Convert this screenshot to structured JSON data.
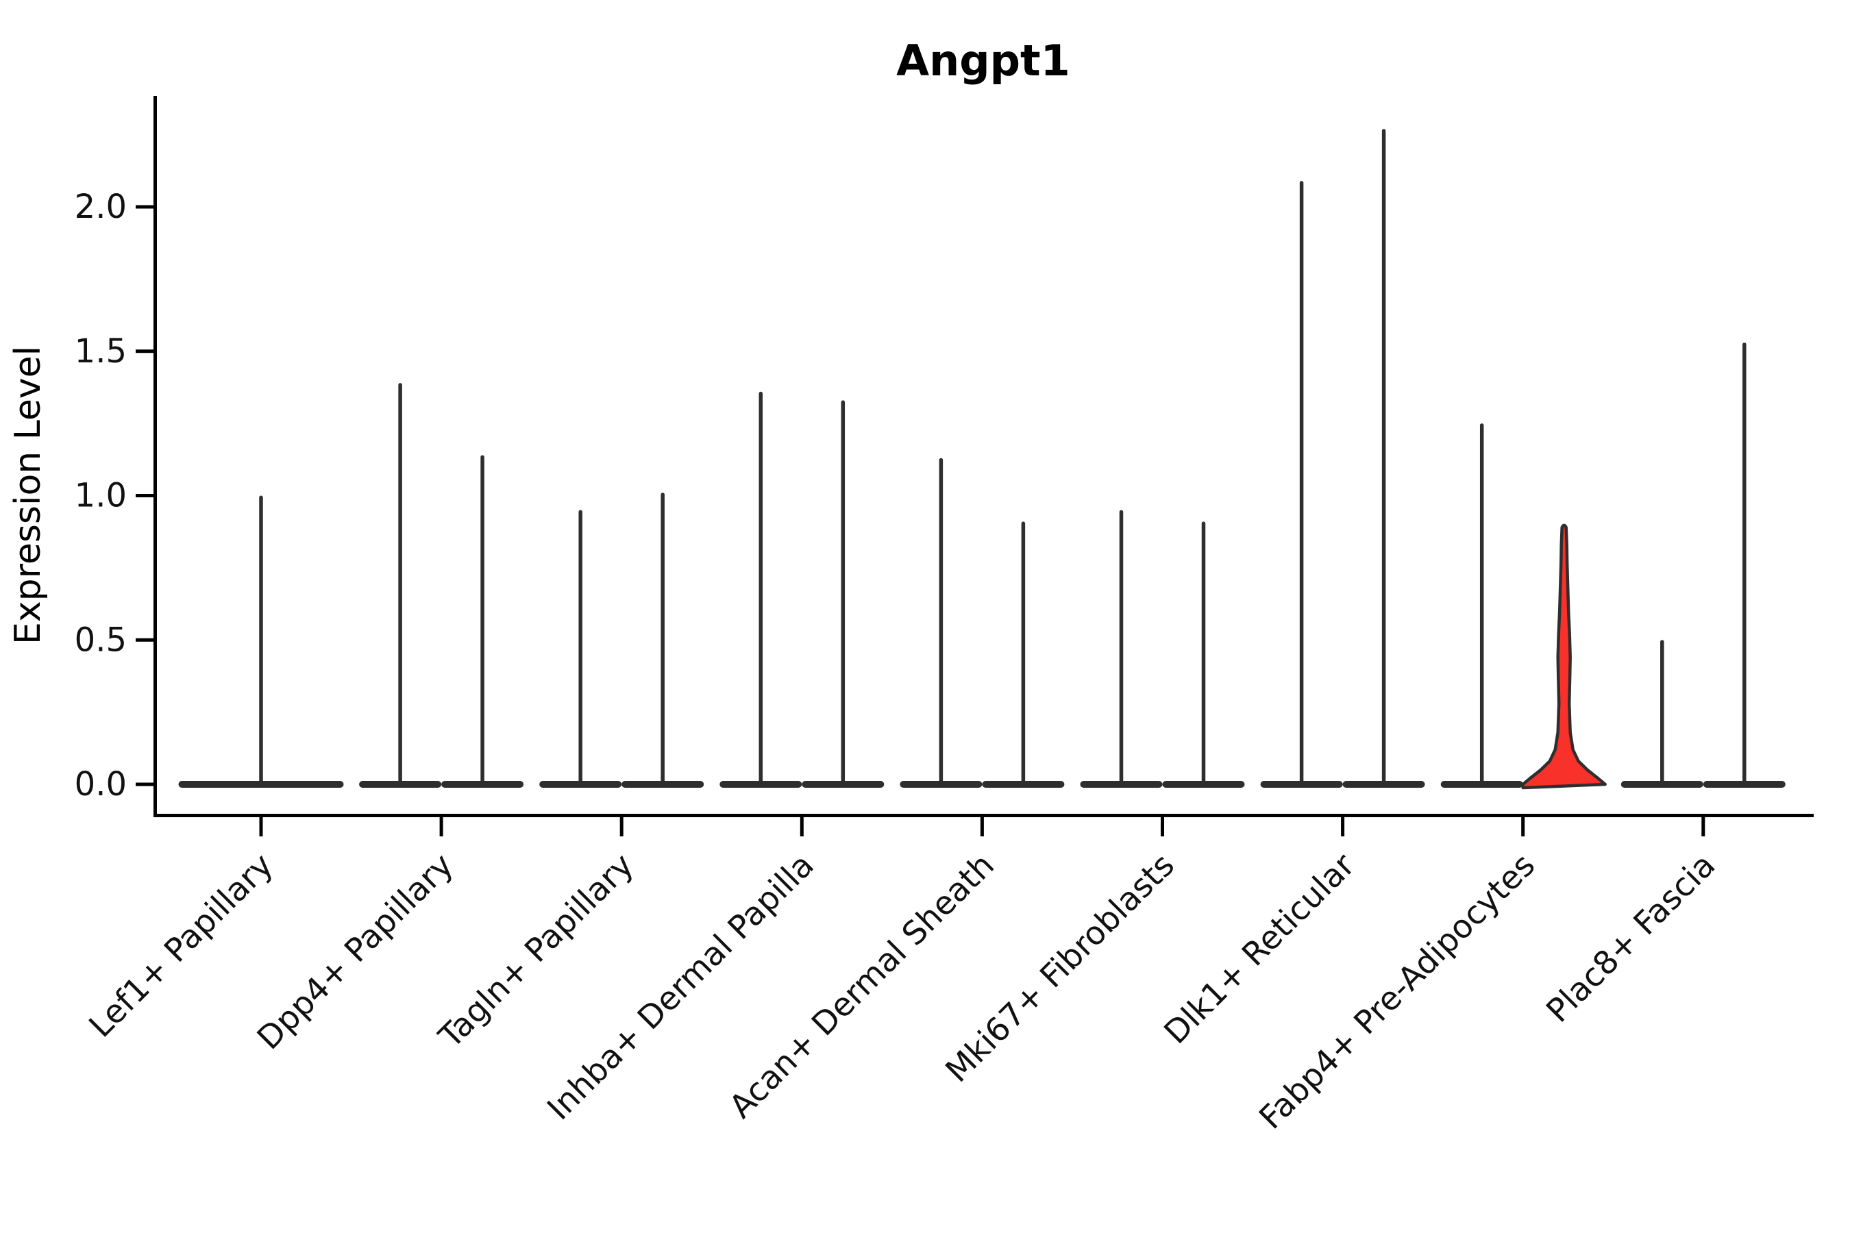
{
  "title": "Angpt1",
  "axes": {
    "ylabel": "Expression Level",
    "ytick_labels": [
      "0.0",
      "0.5",
      "1.0",
      "1.5",
      "2.0"
    ]
  },
  "colors": {
    "violin_outline": "#2e2e2e",
    "highlight_fill": "#f8322a",
    "axis": "#000000",
    "text": "#111111"
  },
  "chart_data": {
    "type": "violin",
    "title": "Angpt1",
    "xlabel": "",
    "ylabel": "Expression Level",
    "ylim": [
      -0.08,
      2.38
    ],
    "yticks": [
      0.0,
      0.5,
      1.0,
      1.5,
      2.0
    ],
    "grid": false,
    "legend_position": "none",
    "categories": [
      "Lef1+ Papillary",
      "Dpp4+ Papillary",
      "Tagln+ Papillary",
      "Inhba+ Dermal Papilla",
      "Acan+ Dermal Sheath",
      "Mki67+ Fibroblasts",
      "Dlk1+ Reticular",
      "Fabp4+ Pre-Adipocytes",
      "Plac8+ Fascia"
    ],
    "shape_note": "Each violin is a near-delta at 0: wide flat body at expression 0 with a thin density spike rising to the max expression value. Most categories contain two side-by-side violins (dodged groups); Lef1+ Papillary has a single full-width violin. One violin (right violin of Fabp4+ Pre-Adipocytes) is filled red and has a visible body: wide bell at 0, thin stem, slight bulge around 0.44, narrow tip ending at 0.89.",
    "violins": [
      {
        "category": "Lef1+ Papillary",
        "group_violins": [
          {
            "max": 1.0,
            "highlight": false
          }
        ]
      },
      {
        "category": "Dpp4+ Papillary",
        "group_violins": [
          {
            "max": 1.39,
            "highlight": false
          },
          {
            "max": 1.14,
            "highlight": false
          }
        ]
      },
      {
        "category": "Tagln+ Papillary",
        "group_violins": [
          {
            "max": 0.95,
            "highlight": false
          },
          {
            "max": 1.01,
            "highlight": false
          }
        ]
      },
      {
        "category": "Inhba+ Dermal Papilla",
        "group_violins": [
          {
            "max": 1.36,
            "highlight": false
          },
          {
            "max": 1.33,
            "highlight": false
          }
        ]
      },
      {
        "category": "Acan+ Dermal Sheath",
        "group_violins": [
          {
            "max": 1.13,
            "highlight": false
          },
          {
            "max": 0.91,
            "highlight": false
          }
        ]
      },
      {
        "category": "Mki67+ Fibroblasts",
        "group_violins": [
          {
            "max": 0.95,
            "highlight": false
          },
          {
            "max": 0.91,
            "highlight": false
          }
        ]
      },
      {
        "category": "Dlk1+ Reticular",
        "group_violins": [
          {
            "max": 2.09,
            "highlight": false
          },
          {
            "max": 2.27,
            "highlight": false
          }
        ]
      },
      {
        "category": "Fabp4+ Pre-Adipocytes",
        "group_violins": [
          {
            "max": 1.25,
            "highlight": false
          },
          {
            "max": 0.89,
            "highlight": true
          }
        ]
      },
      {
        "category": "Plac8+ Fascia",
        "group_violins": [
          {
            "max": 0.5,
            "highlight": false
          },
          {
            "max": 1.53,
            "highlight": false
          }
        ]
      }
    ],
    "highlight_violin": {
      "category": "Fabp4+ Pre-Adipocytes",
      "position": "right",
      "max": 0.89,
      "fill": "#f8322a",
      "half_width_profile": [
        [
          0.0,
          60
        ],
        [
          0.02,
          50
        ],
        [
          0.05,
          34
        ],
        [
          0.08,
          21
        ],
        [
          0.12,
          13
        ],
        [
          0.18,
          9
        ],
        [
          0.28,
          7.5
        ],
        [
          0.38,
          8.5
        ],
        [
          0.44,
          9
        ],
        [
          0.52,
          8
        ],
        [
          0.6,
          6.5
        ],
        [
          0.68,
          5.5
        ],
        [
          0.76,
          4.5
        ],
        [
          0.83,
          4
        ],
        [
          0.89,
          3
        ]
      ]
    }
  }
}
